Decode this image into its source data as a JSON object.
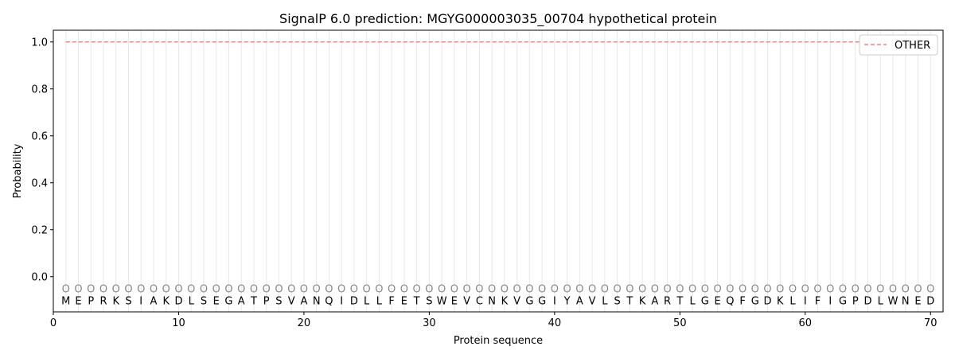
{
  "chart_data": {
    "type": "line",
    "title": "SignalP 6.0 prediction: MGYG000003035_00704 hypothetical protein",
    "xlabel": "Protein sequence",
    "ylabel": "Probability",
    "xlim": [
      0,
      71
    ],
    "ylim": [
      -0.15,
      1.05
    ],
    "xticks": [
      0,
      10,
      20,
      30,
      40,
      50,
      60,
      70
    ],
    "yticks": [
      0.0,
      0.2,
      0.4,
      0.6,
      0.8,
      1.0
    ],
    "sequence": "MEPRKSIAKDLSEGATPSVANQIDLLFETSWEVCNKVGGIYAVLSTKARTLGEQFGDKLIFIGPDLWNED",
    "region_marker": "O",
    "series": [
      {
        "name": "OTHER",
        "color": "#f08080",
        "style": "dashed",
        "x_start": 1,
        "x_end": 70,
        "value": 1.0
      }
    ],
    "legend": "top-right",
    "grid": "vertical lines at each residue"
  }
}
